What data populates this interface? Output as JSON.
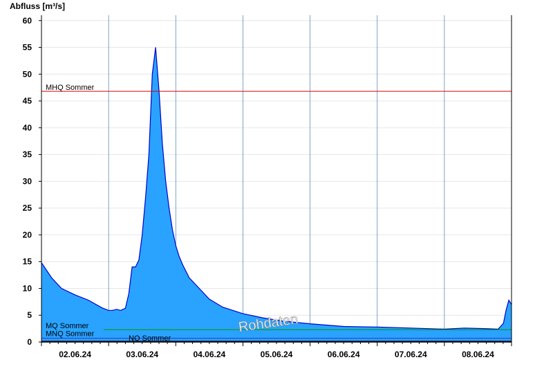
{
  "chart_data": {
    "type": "area",
    "ylabel": "Abfluss [m³/s]",
    "ylim": [
      0,
      61
    ],
    "yticks": [
      0,
      5,
      10,
      15,
      20,
      25,
      30,
      35,
      40,
      45,
      50,
      55,
      60
    ],
    "xlim": [
      0,
      7
    ],
    "xticks": [
      {
        "label": "02.06.24",
        "x": 0.5
      },
      {
        "label": "03.06.24",
        "x": 1.5
      },
      {
        "label": "04.06.24",
        "x": 2.5
      },
      {
        "label": "05.06.24",
        "x": 3.5
      },
      {
        "label": "06.06.24",
        "x": 4.5
      },
      {
        "label": "07.06.24",
        "x": 5.5
      },
      {
        "label": "08.06.24",
        "x": 6.5
      }
    ],
    "reference_lines": [
      {
        "name": "MHQ Sommer",
        "value": 46.8,
        "color": "#dd0000"
      },
      {
        "name": "MQ Sommer",
        "value": 2.3,
        "color": "#009900"
      },
      {
        "name": "MNQ Sommer",
        "value": 0.7,
        "color": "#3333cc"
      },
      {
        "name": "NQ Sommer",
        "value": 0.15,
        "color": "#000000"
      }
    ],
    "watermark": "Rohdaten",
    "fill_color": "#29a3ff",
    "line_color": "#0000cc",
    "series": [
      {
        "x": [
          0.0,
          0.15,
          0.3,
          0.5,
          0.7,
          0.9,
          1.0,
          1.05,
          1.12,
          1.18,
          1.25,
          1.3,
          1.35,
          1.4,
          1.45,
          1.5,
          1.55,
          1.6,
          1.65,
          1.7,
          1.75,
          1.8,
          1.85,
          1.9,
          1.95,
          2.0,
          2.05,
          2.1,
          2.2,
          2.35,
          2.5,
          2.7,
          3.0,
          3.3,
          3.6,
          4.0,
          4.5,
          5.0,
          5.5,
          6.0,
          6.3,
          6.6,
          6.8,
          6.88,
          6.92,
          6.96,
          7.0
        ],
        "y": [
          14.8,
          12.0,
          10.0,
          8.8,
          7.8,
          6.4,
          5.9,
          5.9,
          6.1,
          5.9,
          6.3,
          9.0,
          14.0,
          14.0,
          15.3,
          20.0,
          27.0,
          35.0,
          50.0,
          55.0,
          47.0,
          37.0,
          30.0,
          25.0,
          21.0,
          18.0,
          16.0,
          14.5,
          12.0,
          10.0,
          8.0,
          6.5,
          5.3,
          4.5,
          3.9,
          3.4,
          2.9,
          2.8,
          2.6,
          2.4,
          2.6,
          2.5,
          2.4,
          3.5,
          6.0,
          7.8,
          7.0
        ]
      }
    ]
  }
}
